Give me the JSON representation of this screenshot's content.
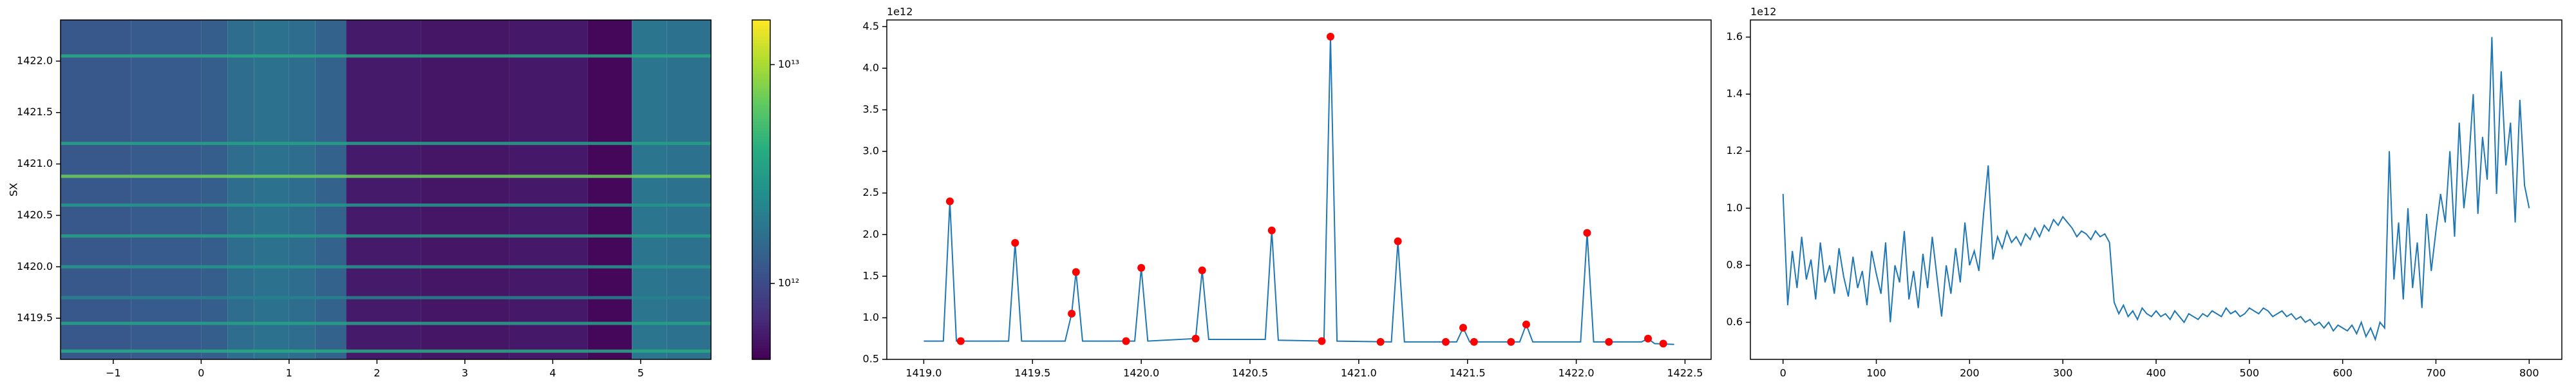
{
  "chart_data": [
    {
      "type": "heatmap",
      "ylabel": "SX",
      "colormap": "viridis",
      "log_color": true,
      "x_edges": [
        -1.6,
        -0.8,
        0.0,
        0.3,
        0.6,
        1.0,
        1.3,
        1.65,
        2.5,
        3.5,
        4.4,
        4.9,
        5.3,
        5.8
      ],
      "column_values": [
        1200000000000.0,
        1250000000000.0,
        1300000000000.0,
        1600000000000.0,
        1700000000000.0,
        1600000000000.0,
        1400000000000.0,
        580000000000.0,
        550000000000.0,
        570000000000.0,
        480000000000.0,
        1800000000000.0,
        1700000000000.0
      ],
      "line_y": [
        1422.05,
        1421.2,
        1420.88,
        1420.6,
        1420.3,
        1420.0,
        1419.7,
        1419.45,
        1419.18
      ],
      "line_values": [
        4000000000000.0,
        3500000000000.0,
        7000000000000.0,
        3000000000000.0,
        3500000000000.0,
        3000000000000.0,
        2200000000000.0,
        3500000000000.0,
        4000000000000.0
      ],
      "xlim": [
        -1.6,
        5.8
      ],
      "ylim": [
        1419.1,
        1422.4
      ],
      "xticks": [
        {
          "value": -1,
          "label": "−1"
        },
        0,
        1,
        2,
        3,
        4,
        5
      ],
      "yticks": [
        1419.5,
        {
          "value": 1420,
          "label": "1420.0"
        },
        1420.5,
        {
          "value": 1421,
          "label": "1421.0"
        },
        1421.5,
        {
          "value": 1422,
          "label": "1422.0"
        }
      ],
      "clim": [
        450000000000.0,
        16000000000000.0
      ],
      "cticks": [
        {
          "value": 1000000000000.0,
          "label": "10¹²"
        },
        {
          "value": 10000000000000.0,
          "label": "10¹³"
        }
      ]
    },
    {
      "type": "line",
      "offset_label": "1e12",
      "series": [
        {
          "style": "line",
          "color": "#1f77b4",
          "x": [
            1419.0,
            1419.09,
            1419.12,
            1419.15,
            1419.39,
            1419.42,
            1419.45,
            1419.65,
            1419.68,
            1419.7,
            1419.73,
            1419.97,
            1420.0,
            1420.03,
            1420.25,
            1420.28,
            1420.31,
            1420.57,
            1420.6,
            1420.63,
            1420.84,
            1420.87,
            1420.9,
            1421.15,
            1421.18,
            1421.21,
            1421.45,
            1421.48,
            1421.51,
            1421.74,
            1421.77,
            1421.8,
            1422.02,
            1422.05,
            1422.08,
            1422.3,
            1422.33,
            1422.36,
            1422.45
          ],
          "values": [
            0.72,
            0.72,
            2.4,
            0.72,
            0.72,
            1.9,
            0.72,
            0.72,
            1.05,
            1.55,
            0.72,
            0.72,
            1.6,
            0.72,
            0.75,
            1.57,
            0.74,
            0.74,
            2.05,
            0.73,
            0.72,
            4.38,
            0.72,
            0.71,
            1.92,
            0.71,
            0.71,
            0.88,
            0.71,
            0.71,
            0.92,
            0.71,
            0.71,
            2.02,
            0.71,
            0.71,
            0.75,
            0.69,
            0.68
          ]
        },
        {
          "style": "markers",
          "color": "#ff0000",
          "x": [
            1419.12,
            1419.17,
            1419.42,
            1419.68,
            1419.7,
            1419.93,
            1420.0,
            1420.25,
            1420.28,
            1420.6,
            1420.83,
            1420.87,
            1421.1,
            1421.18,
            1421.4,
            1421.48,
            1421.53,
            1421.7,
            1421.77,
            1422.05,
            1422.15,
            1422.33,
            1422.4
          ],
          "values": [
            2.4,
            0.72,
            1.9,
            1.05,
            1.55,
            0.72,
            1.6,
            0.75,
            1.57,
            2.05,
            0.72,
            4.38,
            0.71,
            1.92,
            0.71,
            0.88,
            0.71,
            0.71,
            0.92,
            2.02,
            0.71,
            0.75,
            0.69
          ]
        }
      ],
      "xlim": [
        1418.83,
        1422.62
      ],
      "ylim": [
        0.5,
        4.58
      ],
      "xticks": [
        {
          "value": 1419,
          "label": "1419.0"
        },
        1419.5,
        {
          "value": 1420,
          "label": "1420.0"
        },
        1420.5,
        {
          "value": 1421,
          "label": "1421.0"
        },
        1421.5,
        {
          "value": 1422,
          "label": "1422.0"
        },
        1422.5
      ],
      "yticks": [
        0.5,
        {
          "value": 1,
          "label": "1.0"
        },
        1.5,
        {
          "value": 2,
          "label": "2.0"
        },
        2.5,
        {
          "value": 3,
          "label": "3.0"
        },
        3.5,
        {
          "value": 4,
          "label": "4.0"
        },
        4.5
      ]
    },
    {
      "type": "line",
      "offset_label": "1e12",
      "series": [
        {
          "style": "line",
          "color": "#1f77b4",
          "x": [
            0,
            5,
            10,
            15,
            20,
            25,
            30,
            35,
            40,
            45,
            50,
            55,
            60,
            65,
            70,
            75,
            80,
            85,
            90,
            95,
            100,
            105,
            110,
            115,
            120,
            125,
            130,
            135,
            140,
            145,
            150,
            155,
            160,
            165,
            170,
            175,
            180,
            185,
            190,
            195,
            200,
            205,
            210,
            215,
            220,
            225,
            230,
            235,
            240,
            245,
            250,
            255,
            260,
            265,
            270,
            275,
            280,
            285,
            290,
            295,
            300,
            305,
            310,
            315,
            320,
            325,
            330,
            335,
            340,
            345,
            350,
            355,
            360,
            365,
            370,
            375,
            380,
            385,
            390,
            395,
            400,
            405,
            410,
            415,
            420,
            425,
            430,
            435,
            440,
            445,
            450,
            455,
            460,
            465,
            470,
            475,
            480,
            485,
            490,
            495,
            500,
            505,
            510,
            515,
            520,
            525,
            530,
            535,
            540,
            545,
            550,
            555,
            560,
            565,
            570,
            575,
            580,
            585,
            590,
            595,
            600,
            605,
            610,
            615,
            620,
            625,
            630,
            635,
            640,
            645,
            650,
            655,
            660,
            665,
            670,
            675,
            680,
            685,
            690,
            695,
            700,
            705,
            710,
            715,
            720,
            725,
            730,
            735,
            740,
            745,
            750,
            755,
            760,
            765,
            770,
            775,
            780,
            785,
            790,
            795,
            800
          ],
          "values": [
            1.05,
            0.66,
            0.85,
            0.72,
            0.9,
            0.75,
            0.82,
            0.68,
            0.88,
            0.74,
            0.8,
            0.7,
            0.86,
            0.76,
            0.69,
            0.83,
            0.72,
            0.78,
            0.66,
            0.85,
            0.77,
            0.7,
            0.88,
            0.6,
            0.8,
            0.74,
            0.92,
            0.68,
            0.78,
            0.65,
            0.84,
            0.72,
            0.9,
            0.76,
            0.62,
            0.8,
            0.7,
            0.86,
            0.74,
            0.95,
            0.8,
            0.85,
            0.78,
            0.98,
            1.15,
            0.82,
            0.9,
            0.86,
            0.92,
            0.88,
            0.9,
            0.87,
            0.91,
            0.89,
            0.93,
            0.9,
            0.94,
            0.92,
            0.96,
            0.94,
            0.97,
            0.95,
            0.93,
            0.9,
            0.92,
            0.91,
            0.89,
            0.92,
            0.9,
            0.91,
            0.88,
            0.67,
            0.63,
            0.66,
            0.62,
            0.64,
            0.61,
            0.65,
            0.63,
            0.62,
            0.64,
            0.62,
            0.63,
            0.61,
            0.64,
            0.62,
            0.6,
            0.63,
            0.62,
            0.61,
            0.63,
            0.62,
            0.64,
            0.63,
            0.62,
            0.65,
            0.63,
            0.64,
            0.62,
            0.63,
            0.65,
            0.64,
            0.63,
            0.65,
            0.64,
            0.62,
            0.63,
            0.64,
            0.62,
            0.63,
            0.61,
            0.62,
            0.6,
            0.61,
            0.59,
            0.6,
            0.58,
            0.6,
            0.57,
            0.59,
            0.58,
            0.57,
            0.59,
            0.56,
            0.6,
            0.55,
            0.58,
            0.54,
            0.6,
            0.58,
            1.2,
            0.75,
            0.95,
            0.68,
            1.0,
            0.72,
            0.88,
            0.65,
            0.98,
            0.78,
            0.92,
            1.05,
            0.95,
            1.2,
            0.9,
            1.3,
            1.0,
            1.15,
            1.4,
            0.98,
            1.25,
            1.1,
            1.6,
            1.05,
            1.48,
            1.15,
            1.3,
            0.95,
            1.38,
            1.08,
            1.0
          ]
        }
      ],
      "xlim": [
        -35,
        835
      ],
      "ylim": [
        0.47,
        1.66
      ],
      "xticks": [
        0,
        100,
        200,
        300,
        400,
        500,
        600,
        700,
        800
      ],
      "yticks": [
        0.6,
        0.8,
        {
          "value": 1,
          "label": "1.0"
        },
        1.2,
        1.4,
        1.6
      ]
    }
  ]
}
